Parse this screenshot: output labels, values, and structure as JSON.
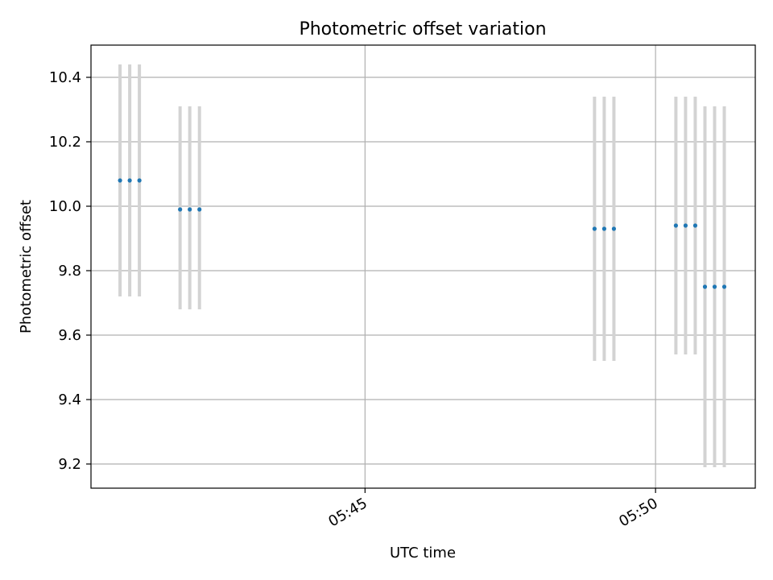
{
  "chart_data": {
    "type": "scatter",
    "title": "Photometric offset variation",
    "xlabel": "UTC time",
    "ylabel": "Photometric offset",
    "x_axis": {
      "kind": "time",
      "range": [
        "05:40:17",
        "05:51:43"
      ],
      "ticks": [
        {
          "value": "05:45:00",
          "label": "05:45"
        },
        {
          "value": "05:50:00",
          "label": "05:50"
        }
      ],
      "label_rotation_deg": -30
    },
    "y_axis": {
      "range": [
        9.125,
        10.5
      ],
      "ticks": [
        9.2,
        9.4,
        9.6,
        9.8,
        10.0,
        10.2,
        10.4
      ],
      "tick_labels": [
        "9.2",
        "9.4",
        "9.6",
        "9.8",
        "10.0",
        "10.2",
        "10.4"
      ]
    },
    "grid": true,
    "legend": "none",
    "colors": {
      "point": "#1f77b4",
      "errorbar": "#d3d3d3",
      "grid": "#b0b0b0"
    },
    "series": [
      {
        "points": [
          {
            "x": "05:40:47",
            "y": 10.08,
            "ylow": 9.72,
            "yhigh": 10.44
          },
          {
            "x": "05:40:57",
            "y": 10.08,
            "ylow": 9.72,
            "yhigh": 10.44
          },
          {
            "x": "05:41:07",
            "y": 10.08,
            "ylow": 9.72,
            "yhigh": 10.44
          },
          {
            "x": "05:41:49",
            "y": 9.99,
            "ylow": 9.68,
            "yhigh": 10.31
          },
          {
            "x": "05:41:59",
            "y": 9.99,
            "ylow": 9.68,
            "yhigh": 10.31
          },
          {
            "x": "05:42:09",
            "y": 9.99,
            "ylow": 9.68,
            "yhigh": 10.31
          },
          {
            "x": "05:48:57",
            "y": 9.93,
            "ylow": 9.52,
            "yhigh": 10.34
          },
          {
            "x": "05:49:07",
            "y": 9.93,
            "ylow": 9.52,
            "yhigh": 10.34
          },
          {
            "x": "05:49:17",
            "y": 9.93,
            "ylow": 9.52,
            "yhigh": 10.34
          },
          {
            "x": "05:50:21",
            "y": 9.94,
            "ylow": 9.54,
            "yhigh": 10.34
          },
          {
            "x": "05:50:31",
            "y": 9.94,
            "ylow": 9.54,
            "yhigh": 10.34
          },
          {
            "x": "05:50:41",
            "y": 9.94,
            "ylow": 9.54,
            "yhigh": 10.34
          },
          {
            "x": "05:50:51",
            "y": 9.75,
            "ylow": 9.19,
            "yhigh": 10.31
          },
          {
            "x": "05:51:01",
            "y": 9.75,
            "ylow": 9.19,
            "yhigh": 10.31
          },
          {
            "x": "05:51:11",
            "y": 9.75,
            "ylow": 9.19,
            "yhigh": 10.31
          }
        ]
      }
    ]
  }
}
